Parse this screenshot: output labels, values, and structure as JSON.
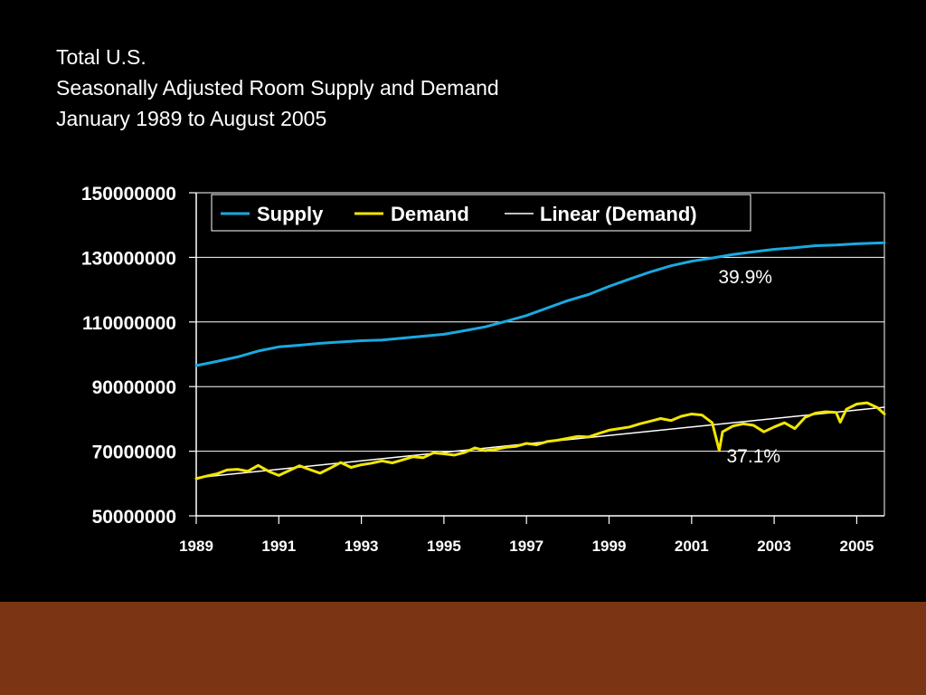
{
  "colors": {
    "background": "#000000",
    "footer": "#7b3515",
    "supply": "#1aa9e1",
    "demand": "#f2e600",
    "trend": "#ffffff"
  },
  "chart_data": {
    "type": "line",
    "title_lines": [
      "Total U.S.",
      "Seasonally Adjusted Room Supply and Demand",
      "January 1989 to August 2005"
    ],
    "xlabel": "",
    "ylabel": "",
    "ylim": [
      50000000,
      150000000
    ],
    "xlim": [
      1989,
      2005.67
    ],
    "y_ticks": [
      50000000,
      70000000,
      90000000,
      110000000,
      130000000,
      150000000
    ],
    "y_tick_labels": [
      "50000000",
      "70000000",
      "90000000",
      "110000000",
      "130000000",
      "150000000"
    ],
    "x_ticks": [
      1989,
      1991,
      1993,
      1995,
      1997,
      1999,
      2001,
      2003,
      2005
    ],
    "x_tick_labels": [
      "1989",
      "1991",
      "1993",
      "1995",
      "1997",
      "1999",
      "2001",
      "2003",
      "2005"
    ],
    "grid": true,
    "legend": {
      "position": "top",
      "entries": [
        "Supply",
        "Demand",
        "Linear (Demand)"
      ]
    },
    "series": [
      {
        "name": "Supply",
        "x": [
          1989.0,
          1989.5,
          1990.0,
          1990.5,
          1991.0,
          1991.5,
          1992.0,
          1992.5,
          1993.0,
          1993.5,
          1994.0,
          1994.5,
          1995.0,
          1995.5,
          1996.0,
          1996.5,
          1997.0,
          1997.5,
          1998.0,
          1998.5,
          1999.0,
          1999.5,
          2000.0,
          2000.5,
          2001.0,
          2001.5,
          2002.0,
          2002.5,
          2003.0,
          2003.5,
          2004.0,
          2004.5,
          2005.0,
          2005.67
        ],
        "values": [
          96500000,
          97800000,
          99200000,
          101000000,
          102300000,
          102800000,
          103400000,
          103800000,
          104200000,
          104400000,
          105000000,
          105600000,
          106200000,
          107300000,
          108500000,
          110200000,
          112000000,
          114300000,
          116600000,
          118500000,
          121000000,
          123300000,
          125500000,
          127400000,
          128800000,
          129800000,
          130900000,
          131700000,
          132500000,
          133000000,
          133600000,
          133800000,
          134200000,
          134500000
        ]
      },
      {
        "name": "Demand",
        "x": [
          1989.0,
          1989.25,
          1989.5,
          1989.75,
          1990.0,
          1990.25,
          1990.5,
          1990.75,
          1991.0,
          1991.25,
          1991.5,
          1991.75,
          1992.0,
          1992.25,
          1992.5,
          1992.75,
          1993.0,
          1993.25,
          1993.5,
          1993.75,
          1994.0,
          1994.25,
          1994.5,
          1994.75,
          1995.0,
          1995.25,
          1995.5,
          1995.75,
          1996.0,
          1996.25,
          1996.5,
          1996.75,
          1997.0,
          1997.25,
          1997.5,
          1997.75,
          1998.0,
          1998.25,
          1998.5,
          1998.75,
          1999.0,
          1999.25,
          1999.5,
          1999.75,
          2000.0,
          2000.25,
          2000.5,
          2000.75,
          2001.0,
          2001.25,
          2001.5,
          2001.67,
          2001.75,
          2002.0,
          2002.25,
          2002.5,
          2002.75,
          2003.0,
          2003.25,
          2003.5,
          2003.75,
          2004.0,
          2004.25,
          2004.5,
          2004.6,
          2004.75,
          2005.0,
          2005.25,
          2005.5,
          2005.67
        ],
        "values": [
          61500000,
          62300000,
          63000000,
          64200000,
          64400000,
          63800000,
          65600000,
          63800000,
          62500000,
          64000000,
          65500000,
          64300000,
          63200000,
          64800000,
          66500000,
          65000000,
          65800000,
          66300000,
          67000000,
          66400000,
          67300000,
          68300000,
          68000000,
          69500000,
          69200000,
          68800000,
          69600000,
          71000000,
          70200000,
          70600000,
          71200000,
          71500000,
          72400000,
          72000000,
          73000000,
          73400000,
          74000000,
          74600000,
          74400000,
          75500000,
          76500000,
          77000000,
          77500000,
          78500000,
          79300000,
          80100000,
          79500000,
          80800000,
          81500000,
          81200000,
          78800000,
          70200000,
          76000000,
          77800000,
          78500000,
          78000000,
          76000000,
          77500000,
          78800000,
          77000000,
          80500000,
          81800000,
          82200000,
          82000000,
          79000000,
          83000000,
          84600000,
          85000000,
          83500000,
          81500000
        ]
      },
      {
        "name": "Linear (Demand)",
        "x": [
          1989.0,
          2005.67
        ],
        "values": [
          61800000,
          83600000
        ]
      }
    ],
    "annotations": [
      {
        "text": "39.9%",
        "x": 2002.3,
        "y": 122000000
      },
      {
        "text": "37.1%",
        "x": 2002.5,
        "y": 66500000
      }
    ]
  }
}
